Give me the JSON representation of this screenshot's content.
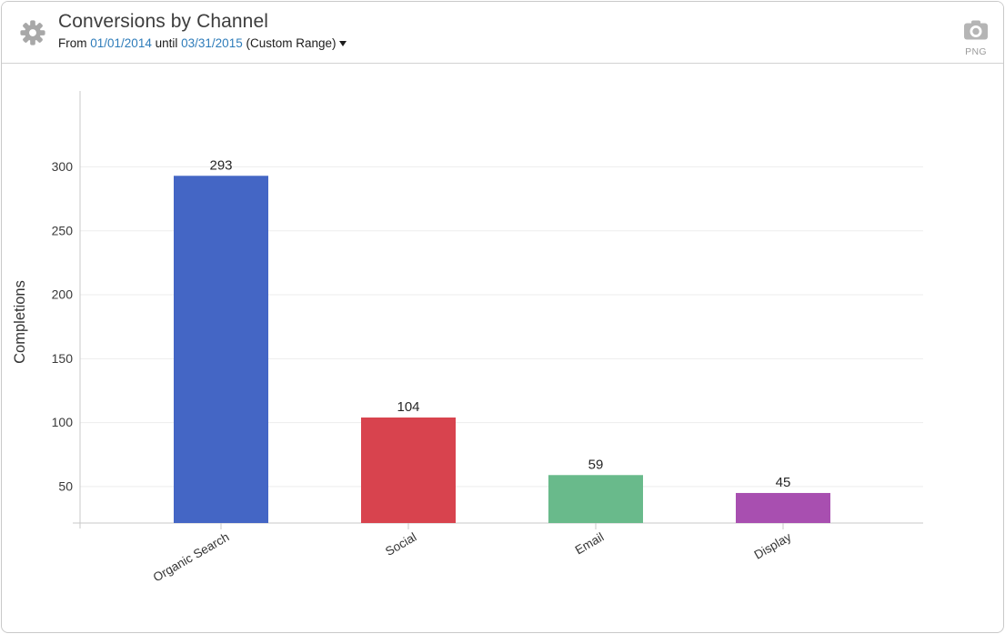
{
  "header": {
    "title": "Conversions by Channel",
    "subtitle": {
      "from_label": "From",
      "start_date": "01/01/2014",
      "until_label": "until",
      "end_date": "03/31/2015",
      "range_label": "(Custom Range)"
    },
    "png_export_label": "PNG"
  },
  "icons": {
    "gear_color": "#a8a8a8",
    "camera_color": "#b5b5b5"
  },
  "chart_data": {
    "type": "bar",
    "title": "Conversions by Channel",
    "categories": [
      "Organic Search",
      "Social",
      "Email",
      "Display"
    ],
    "values": [
      293,
      104,
      59,
      45
    ],
    "bar_colors": [
      "#4466c5",
      "#d8434e",
      "#69ba8b",
      "#a84fb0"
    ],
    "xlabel": "",
    "ylabel": "Completions",
    "yticks": [
      50,
      100,
      150,
      200,
      250,
      300
    ],
    "ylim": [
      21.5,
      359
    ],
    "grid": true,
    "legend": false,
    "value_labels": true,
    "grid_color": "#ededed",
    "axis_color": "#c8c8c8"
  }
}
